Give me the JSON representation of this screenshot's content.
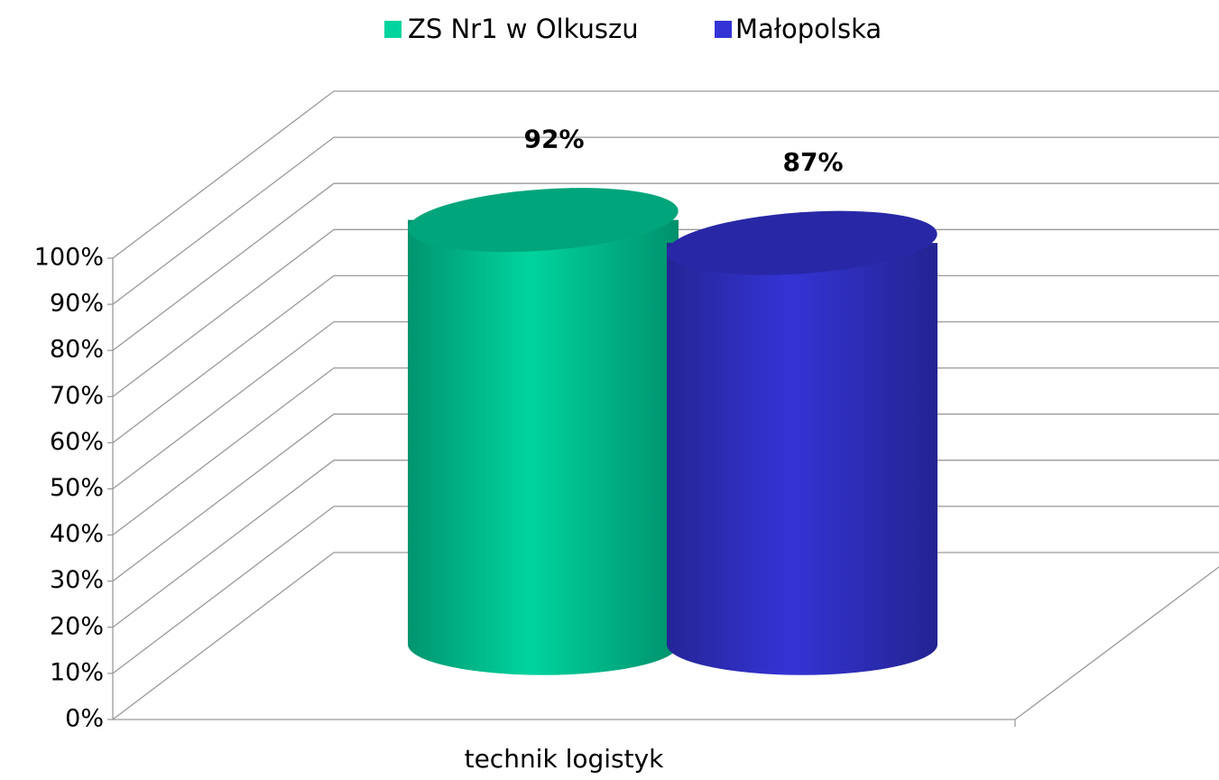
{
  "chart_data": {
    "type": "bar3d-cylinder",
    "categories": [
      "technik logistyk"
    ],
    "series": [
      {
        "name": "ZS Nr1 w Olkuszu",
        "color": "#00d49e",
        "values": [
          92
        ],
        "value_labels": [
          "92%"
        ]
      },
      {
        "name": "Małopolska",
        "color": "#3434d6",
        "values": [
          87
        ],
        "value_labels": [
          "87%"
        ]
      }
    ],
    "ylim": [
      0,
      100
    ],
    "yticks": [
      {
        "value": 0,
        "label": "0%"
      },
      {
        "value": 10,
        "label": "10%"
      },
      {
        "value": 20,
        "label": "20%"
      },
      {
        "value": 30,
        "label": "30%"
      },
      {
        "value": 40,
        "label": "40%"
      },
      {
        "value": 50,
        "label": "50%"
      },
      {
        "value": 60,
        "label": "60%"
      },
      {
        "value": 70,
        "label": "70%"
      },
      {
        "value": 80,
        "label": "80%"
      },
      {
        "value": 90,
        "label": "90%"
      },
      {
        "value": 100,
        "label": "100%"
      }
    ],
    "grid": true,
    "legend": "top"
  }
}
